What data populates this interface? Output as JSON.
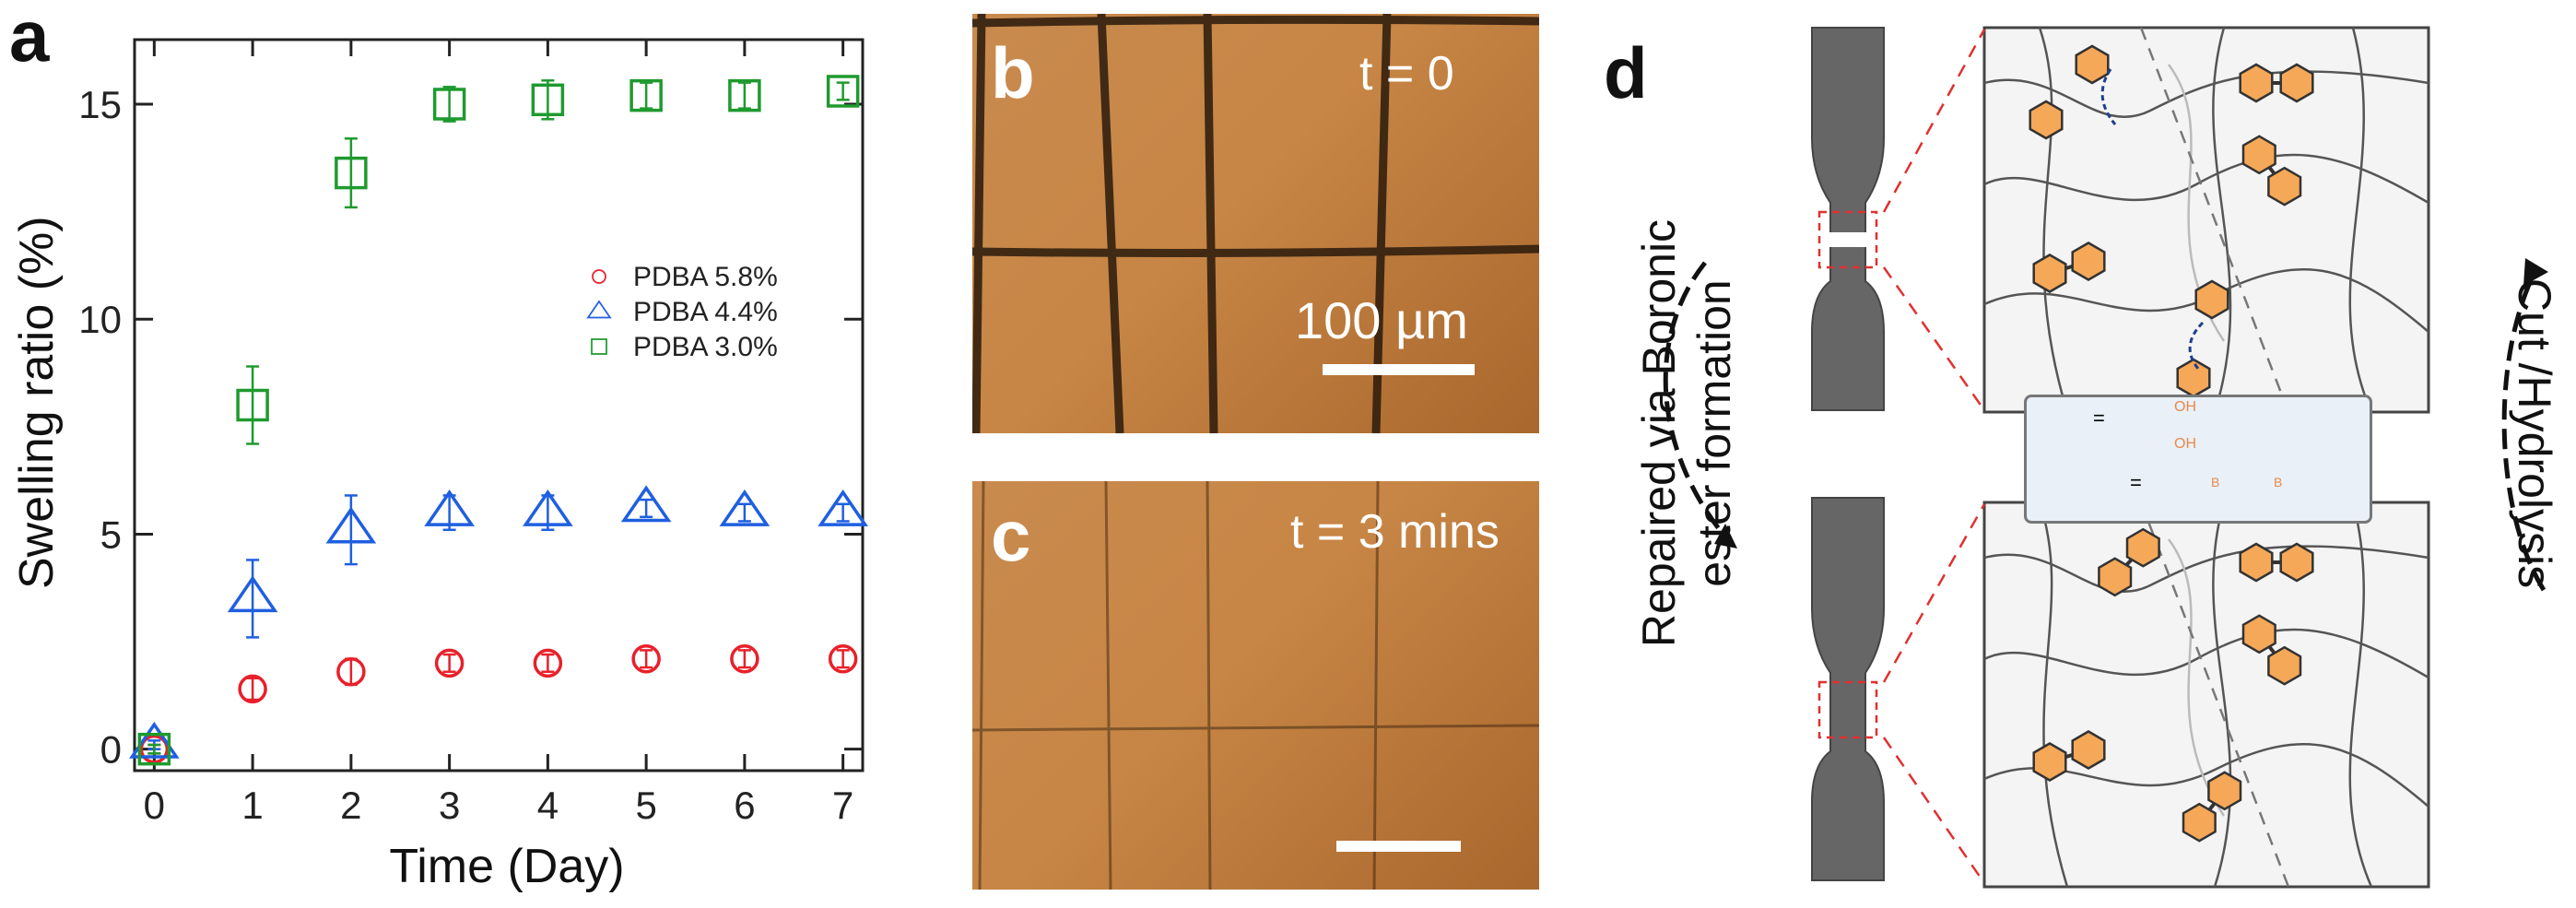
{
  "panels": {
    "a": "a",
    "b": "b",
    "c": "c",
    "d": "d"
  },
  "chart_data": {
    "type": "scatter",
    "xlabel": "Time (Day)",
    "ylabel": "Swelling ratio (%)",
    "xlim": [
      -0.2,
      7.2
    ],
    "ylim": [
      -0.5,
      16.5
    ],
    "xticks": [
      0,
      1,
      2,
      3,
      4,
      5,
      6,
      7
    ],
    "yticks": [
      0,
      5,
      10,
      15
    ],
    "grid": false,
    "legend_position": "center-right",
    "x": [
      0,
      1,
      2,
      3,
      4,
      5,
      6,
      7
    ],
    "series": [
      {
        "name": "PDBA 5.8%",
        "marker": "circle",
        "color": "#e8202a",
        "values": [
          0,
          1.4,
          1.8,
          2.0,
          2.0,
          2.1,
          2.1,
          2.1
        ],
        "errors": [
          0.1,
          0.25,
          0.3,
          0.2,
          0.2,
          0.2,
          0.2,
          0.2
        ]
      },
      {
        "name": "PDBA 4.4%",
        "marker": "triangle",
        "color": "#1f5fe0",
        "values": [
          0.1,
          3.5,
          5.1,
          5.5,
          5.5,
          5.6,
          5.5,
          5.5
        ],
        "errors": [
          0.1,
          0.9,
          0.8,
          0.4,
          0.4,
          0.2,
          0.2,
          0.2
        ]
      },
      {
        "name": "PDBA 3.0%",
        "marker": "square",
        "color": "#1f9a2e",
        "values": [
          0,
          8.0,
          13.4,
          15.0,
          15.1,
          15.2,
          15.2,
          15.3
        ],
        "errors": [
          0.1,
          0.9,
          0.8,
          0.4,
          0.45,
          0.3,
          0.3,
          0.2
        ]
      }
    ]
  },
  "micrographs": {
    "b": {
      "time": "t = 0",
      "scale": "100 µm"
    },
    "c": {
      "time": "t = 3 mins"
    }
  },
  "diagram": {
    "left_label_line1": "Repaired via Boronic",
    "left_label_line2": "ester formation",
    "right_label": "Cut /Hydrolysis",
    "legend_eq": "=",
    "oh": "OH",
    "boron": "B",
    "colors": {
      "hexagon": "#f5a858",
      "network": "#555555",
      "cut_line": "#777777",
      "zoom_lines": "#e03030",
      "arrow": "#1d3f8f"
    }
  }
}
